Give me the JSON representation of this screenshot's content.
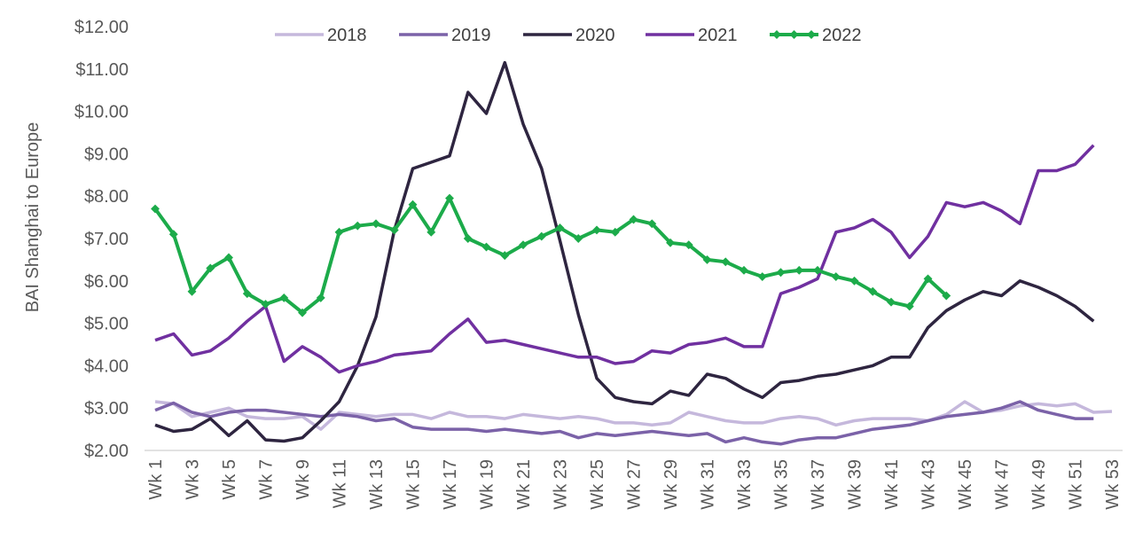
{
  "chart_data": {
    "type": "line",
    "ylabel": "BAI Shanghai to Europe",
    "ylim": [
      2,
      12
    ],
    "y_tick_labels": [
      "$2.00",
      "$3.00",
      "$4.00",
      "$5.00",
      "$6.00",
      "$7.00",
      "$8.00",
      "$9.00",
      "$10.00",
      "$11.00",
      "$12.00"
    ],
    "x_tick_labels": [
      "Wk 1",
      "Wk 3",
      "Wk 5",
      "Wk 7",
      "Wk 9",
      "Wk 11",
      "Wk 13",
      "Wk 15",
      "Wk 17",
      "Wk 19",
      "Wk 21",
      "Wk 23",
      "Wk 25",
      "Wk 27",
      "Wk 29",
      "Wk 31",
      "Wk 33",
      "Wk 35",
      "Wk 37",
      "Wk 39",
      "Wk 41",
      "Wk 43",
      "Wk 45",
      "Wk 47",
      "Wk 49",
      "Wk 51",
      "Wk 53"
    ],
    "x_weeks": [
      1,
      2,
      3,
      4,
      5,
      6,
      7,
      8,
      9,
      10,
      11,
      12,
      13,
      14,
      15,
      16,
      17,
      18,
      19,
      20,
      21,
      22,
      23,
      24,
      25,
      26,
      27,
      28,
      29,
      30,
      31,
      32,
      33,
      34,
      35,
      36,
      37,
      38,
      39,
      40,
      41,
      42,
      43,
      44,
      45,
      46,
      47,
      48,
      49,
      50,
      51,
      52,
      53
    ],
    "grid": false,
    "legend_position": "top",
    "series": [
      {
        "name": "2018",
        "color": "#c5b8dc",
        "marker": "none",
        "values": [
          3.15,
          3.1,
          2.8,
          2.9,
          3.0,
          2.8,
          2.75,
          2.75,
          2.8,
          2.5,
          2.9,
          2.85,
          2.8,
          2.85,
          2.85,
          2.75,
          2.9,
          2.8,
          2.8,
          2.75,
          2.85,
          2.8,
          2.75,
          2.8,
          2.75,
          2.65,
          2.65,
          2.6,
          2.65,
          2.9,
          2.8,
          2.7,
          2.65,
          2.65,
          2.75,
          2.8,
          2.75,
          2.6,
          2.7,
          2.75,
          2.75,
          2.75,
          2.7,
          2.85,
          3.15,
          2.9,
          2.95,
          3.05,
          3.1,
          3.05,
          3.1,
          2.9,
          2.92
        ]
      },
      {
        "name": "2019",
        "color": "#7b62a8",
        "marker": "none",
        "values": [
          2.95,
          3.12,
          2.9,
          2.8,
          2.9,
          2.95,
          2.95,
          2.9,
          2.85,
          2.8,
          2.85,
          2.8,
          2.7,
          2.75,
          2.55,
          2.5,
          2.5,
          2.5,
          2.45,
          2.5,
          2.45,
          2.4,
          2.45,
          2.3,
          2.4,
          2.35,
          2.4,
          2.45,
          2.4,
          2.35,
          2.4,
          2.2,
          2.3,
          2.2,
          2.15,
          2.25,
          2.3,
          2.3,
          2.4,
          2.5,
          2.55,
          2.6,
          2.7,
          2.8,
          2.85,
          2.9,
          3.0,
          3.15,
          2.95,
          2.85,
          2.75,
          2.75,
          null
        ]
      },
      {
        "name": "2020",
        "color": "#2e2540",
        "marker": "none",
        "values": [
          2.6,
          2.45,
          2.5,
          2.75,
          2.35,
          2.7,
          2.25,
          2.22,
          2.3,
          2.7,
          3.15,
          4.0,
          5.15,
          7.2,
          8.65,
          8.8,
          8.95,
          10.45,
          9.95,
          11.15,
          9.7,
          8.65,
          6.95,
          5.2,
          3.7,
          3.25,
          3.15,
          3.1,
          3.4,
          3.3,
          3.8,
          3.7,
          3.45,
          3.25,
          3.6,
          3.65,
          3.75,
          3.8,
          3.9,
          4.0,
          4.2,
          4.2,
          4.9,
          5.3,
          5.55,
          5.75,
          5.65,
          6.0,
          5.85,
          5.65,
          5.4,
          5.05,
          null
        ]
      },
      {
        "name": "2021",
        "color": "#7030a0",
        "marker": "none",
        "values": [
          4.6,
          4.75,
          4.25,
          4.35,
          4.65,
          5.05,
          5.4,
          4.1,
          4.45,
          4.2,
          3.85,
          4.0,
          4.1,
          4.25,
          4.3,
          4.35,
          4.75,
          5.1,
          4.55,
          4.6,
          4.5,
          4.4,
          4.3,
          4.2,
          4.2,
          4.05,
          4.1,
          4.35,
          4.3,
          4.5,
          4.55,
          4.65,
          4.45,
          4.45,
          5.7,
          5.85,
          6.05,
          7.15,
          7.25,
          7.45,
          7.15,
          6.55,
          7.05,
          7.85,
          7.75,
          7.85,
          7.65,
          7.35,
          8.6,
          8.6,
          8.75,
          9.2,
          null
        ]
      },
      {
        "name": "2022",
        "color": "#1cab4a",
        "marker": "diamond",
        "values": [
          7.7,
          7.1,
          5.75,
          6.3,
          6.55,
          5.7,
          5.45,
          5.6,
          5.25,
          5.6,
          7.15,
          7.3,
          7.35,
          7.2,
          7.8,
          7.15,
          7.95,
          7.0,
          6.8,
          6.6,
          6.85,
          7.05,
          7.25,
          7.0,
          7.2,
          7.15,
          7.45,
          7.35,
          6.9,
          6.85,
          6.5,
          6.45,
          6.25,
          6.1,
          6.2,
          6.25,
          6.25,
          6.1,
          6.0,
          5.75,
          5.5,
          5.4,
          6.05,
          5.65,
          null,
          null,
          null,
          null,
          null,
          null,
          null,
          null,
          null
        ]
      }
    ]
  }
}
